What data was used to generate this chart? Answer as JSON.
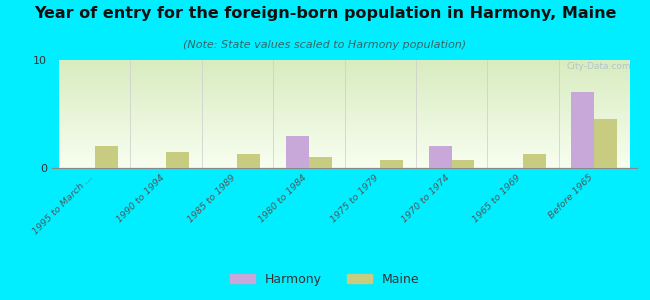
{
  "title": "Year of entry for the foreign-born population in Harmony, Maine",
  "subtitle": "(Note: State values scaled to Harmony population)",
  "categories": [
    "1995 to March ...",
    "1990 to 1994",
    "1985 to 1989",
    "1980 to 1984",
    "1975 to 1979",
    "1970 to 1974",
    "1965 to 1969",
    "Before 1965"
  ],
  "harmony_values": [
    0,
    0,
    0,
    3.0,
    0,
    2.0,
    0,
    7.0
  ],
  "maine_values": [
    2.0,
    1.5,
    1.3,
    1.0,
    0.7,
    0.7,
    1.3,
    4.5
  ],
  "harmony_color": "#c8a8d8",
  "maine_color": "#c8cc80",
  "bg_color": "#00eeff",
  "plot_bg_top": "#d8ecc0",
  "plot_bg_bottom": "#f8fef0",
  "ylim": [
    0,
    10
  ],
  "yticks": [
    0,
    10
  ],
  "bar_width": 0.32,
  "title_fontsize": 11.5,
  "subtitle_fontsize": 8,
  "watermark": "City-Data.com"
}
